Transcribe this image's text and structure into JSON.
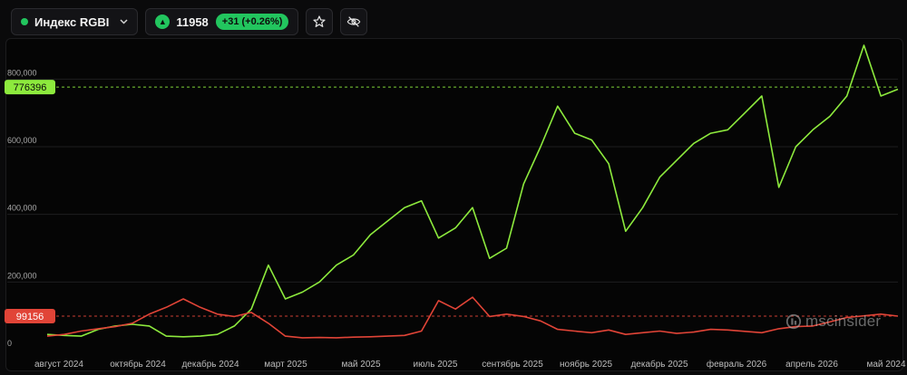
{
  "header": {
    "ticker": "Индекс RGBI",
    "price": "11958",
    "change": "+31 (+0.26%)"
  },
  "watermark": "mscinsider",
  "colors": {
    "green": "#8dea3d",
    "red": "#e14437",
    "accent": "#22c55e"
  },
  "icons": [
    "status-dot",
    "chevron-down-icon",
    "arrow-up-icon",
    "star-icon",
    "eye-off-icon",
    "logo-icon"
  ],
  "chart_data": {
    "type": "line",
    "ylim": [
      0,
      900000
    ],
    "y_ticks": [
      0,
      200000,
      400000,
      600000,
      800000
    ],
    "y_tick_labels": [
      "0",
      "200,000",
      "400,000",
      "600,000",
      "800,000"
    ],
    "x_tick_labels": [
      "август 2024",
      "октябрь 2024",
      "декабрь 2024",
      "март 2025",
      "май 2025",
      "июль 2025",
      "сентябрь 2025",
      "ноябрь 2025",
      "декабрь 2025",
      "февраль 2026",
      "апрель 2026",
      "май 2024"
    ],
    "grid": true,
    "price_lines": [
      {
        "series": "green",
        "value": 776396,
        "label": "776396"
      },
      {
        "series": "red",
        "value": 99156,
        "label": "99156"
      }
    ],
    "series": [
      {
        "color": "#8dea3d",
        "x": [
          0,
          2,
          4,
          6,
          8,
          10,
          12,
          14,
          16,
          18,
          20,
          22,
          24,
          26,
          28,
          30,
          32,
          34,
          36,
          38,
          40,
          42,
          44,
          46,
          48,
          50,
          52,
          54,
          56,
          58,
          60,
          62,
          64,
          66,
          68,
          70,
          72,
          74,
          76,
          78,
          80,
          82,
          84,
          86,
          88,
          90,
          92,
          94,
          96,
          98,
          100
        ],
        "values": [
          45000,
          42000,
          40000,
          60000,
          70000,
          75000,
          70000,
          40000,
          38000,
          40000,
          45000,
          70000,
          120000,
          250000,
          150000,
          170000,
          200000,
          250000,
          280000,
          340000,
          380000,
          420000,
          440000,
          330000,
          360000,
          420000,
          270000,
          300000,
          490000,
          600000,
          720000,
          640000,
          620000,
          550000,
          350000,
          420000,
          510000,
          560000,
          610000,
          640000,
          650000,
          700000,
          750000,
          480000,
          600000,
          650000,
          690000,
          750000,
          900000,
          750000,
          770000
        ]
      },
      {
        "color": "#e14437",
        "x": [
          0,
          2,
          4,
          6,
          8,
          10,
          12,
          14,
          16,
          18,
          20,
          22,
          24,
          26,
          28,
          30,
          32,
          34,
          36,
          38,
          40,
          42,
          44,
          46,
          48,
          50,
          52,
          54,
          56,
          58,
          60,
          62,
          64,
          66,
          68,
          70,
          72,
          74,
          76,
          78,
          80,
          82,
          84,
          86,
          88,
          90,
          92,
          94,
          96,
          98,
          100
        ],
        "values": [
          40000,
          45000,
          55000,
          62000,
          68000,
          78000,
          105000,
          125000,
          150000,
          125000,
          105000,
          98000,
          110000,
          78000,
          40000,
          35000,
          36000,
          35000,
          37000,
          38000,
          40000,
          42000,
          55000,
          145000,
          120000,
          155000,
          98000,
          105000,
          98000,
          85000,
          60000,
          55000,
          50000,
          58000,
          45000,
          50000,
          55000,
          48000,
          52000,
          60000,
          58000,
          54000,
          50000,
          62000,
          68000,
          70000,
          82000,
          95000,
          100000,
          105000,
          99156
        ]
      }
    ]
  }
}
